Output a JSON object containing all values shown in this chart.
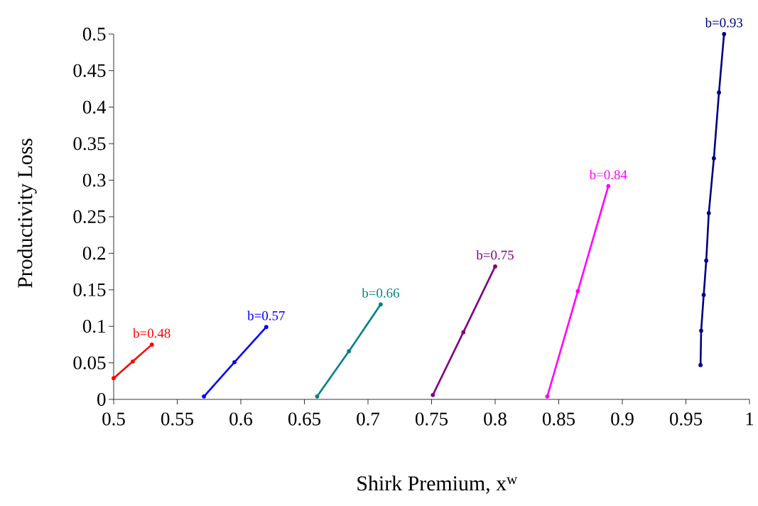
{
  "chart_data": {
    "type": "line",
    "xlabel": "Shirk Premium, x$^{w}$",
    "ylabel": "Productivity Loss",
    "xlim": [
      0.5,
      1
    ],
    "ylim": [
      0,
      0.5
    ],
    "xticks": [
      0.5,
      0.55,
      0.6,
      0.65,
      0.7,
      0.75,
      0.8,
      0.85,
      0.9,
      0.95,
      1
    ],
    "yticks": [
      0,
      0.05,
      0.1,
      0.15,
      0.2,
      0.25,
      0.3,
      0.35,
      0.4,
      0.45,
      0.5
    ],
    "grid": false,
    "legend": false,
    "marker": "circle",
    "line_style": "solid",
    "series": [
      {
        "name": "b=0.48",
        "color": "#ff0000",
        "x": [
          0.5,
          0.515,
          0.53
        ],
        "values": [
          0.029,
          0.052,
          0.075
        ]
      },
      {
        "name": "b=0.57",
        "color": "#0000ff",
        "x": [
          0.571,
          0.595,
          0.62
        ],
        "values": [
          0.004,
          0.051,
          0.099
        ]
      },
      {
        "name": "b=0.66",
        "color": "#008080",
        "x": [
          0.66,
          0.685,
          0.71
        ],
        "values": [
          0.004,
          0.066,
          0.13
        ]
      },
      {
        "name": "b=0.75",
        "color": "#800080",
        "x": [
          0.751,
          0.775,
          0.8
        ],
        "values": [
          0.006,
          0.092,
          0.182
        ]
      },
      {
        "name": "b=0.84",
        "color": "#ff00ff",
        "x": [
          0.841,
          0.865,
          0.889
        ],
        "values": [
          0.004,
          0.148,
          0.292
        ]
      },
      {
        "name": "b=0.93",
        "color": "#000080",
        "x": [
          0.9615,
          0.962,
          0.964,
          0.966,
          0.968,
          0.972,
          0.976,
          0.98
        ],
        "values": [
          0.047,
          0.094,
          0.143,
          0.19,
          0.255,
          0.33,
          0.42,
          0.5
        ]
      }
    ]
  }
}
